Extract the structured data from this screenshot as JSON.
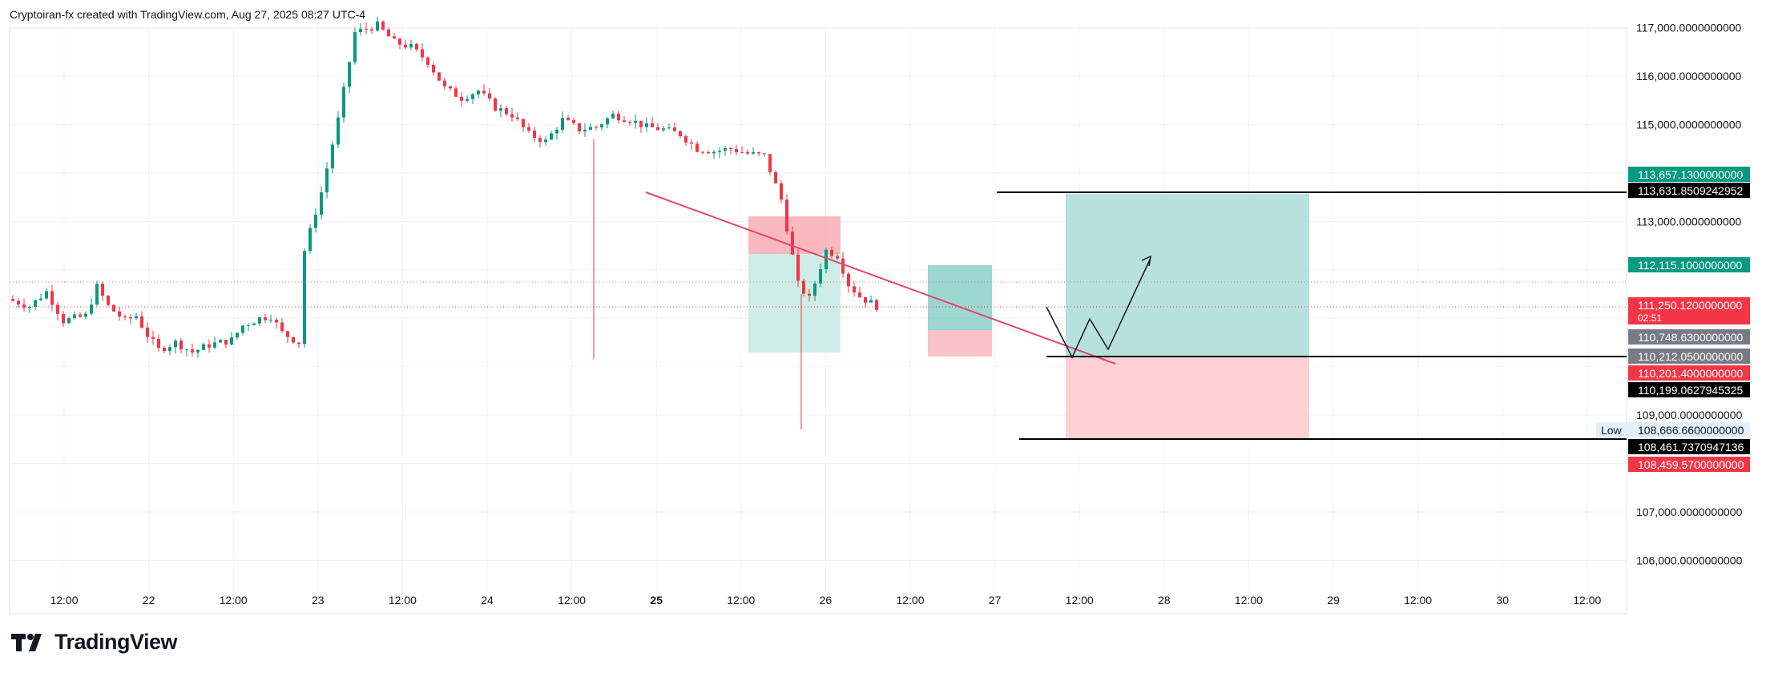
{
  "header": {
    "attribution": "Cryptoiran-fx created with TradingView.com, Aug 27, 2025 08:27 UTC-4"
  },
  "brand": {
    "name": "TradingView",
    "logo_icon": "tradingview-logo-icon"
  },
  "chart_data": {
    "type": "candlestick",
    "ylim": [
      105500,
      117200
    ],
    "y_ticks": [
      {
        "value": 117000,
        "label": "117,000.0000000000"
      },
      {
        "value": 116000,
        "label": "116,000.0000000000"
      },
      {
        "value": 115000,
        "label": "115,000.0000000000"
      },
      {
        "value": 113000,
        "label": "113,000.0000000000"
      },
      {
        "value": 109000,
        "label": "109,000.0000000000"
      },
      {
        "value": 107000,
        "label": "107,000.0000000000"
      },
      {
        "value": 106000,
        "label": "106,000.0000000000"
      }
    ],
    "x_ticks": [
      {
        "label": "12:00",
        "bold": false
      },
      {
        "label": "22",
        "bold": false
      },
      {
        "label": "12:00",
        "bold": false
      },
      {
        "label": "23",
        "bold": false
      },
      {
        "label": "12:00",
        "bold": false
      },
      {
        "label": "24",
        "bold": false
      },
      {
        "label": "12:00",
        "bold": false
      },
      {
        "label": "25",
        "bold": true
      },
      {
        "label": "12:00",
        "bold": false
      },
      {
        "label": "26",
        "bold": false
      },
      {
        "label": "12:00",
        "bold": false
      },
      {
        "label": "27",
        "bold": false
      },
      {
        "label": "12:00",
        "bold": false
      },
      {
        "label": "28",
        "bold": false
      },
      {
        "label": "12:00",
        "bold": false
      },
      {
        "label": "29",
        "bold": false
      },
      {
        "label": "12:00",
        "bold": false
      },
      {
        "label": "30",
        "bold": false
      },
      {
        "label": "12:00",
        "bold": false
      }
    ],
    "price_labels": [
      {
        "value": 113657.13,
        "label": "113,657.1300000000",
        "bg": "#089981",
        "fg": "#ffffff"
      },
      {
        "value": 113631.8509242952,
        "label": "113,631.8509242952",
        "bg": "#000000",
        "fg": "#ffffff"
      },
      {
        "value": 112115.1,
        "label": "112,115.1000000000",
        "bg": "#089981",
        "fg": "#ffffff"
      },
      {
        "value": 111250.12,
        "label": "111,250.1200000000",
        "sub": "02:51",
        "bg": "#f23645",
        "fg": "#ffffff"
      },
      {
        "value": 110748.63,
        "label": "110,748.6300000000",
        "bg": "#787b86",
        "fg": "#ffffff"
      },
      {
        "value": 110212.05,
        "label": "110,212.0500000000",
        "bg": "#787b86",
        "fg": "#ffffff"
      },
      {
        "value": 110201.4,
        "label": "110,201.4000000000",
        "bg": "#f23645",
        "fg": "#ffffff"
      },
      {
        "value": 110199.0627945325,
        "label": "110,199.0627945325",
        "bg": "#000000",
        "fg": "#ffffff"
      },
      {
        "value": 108666.66,
        "label": "108,666.6600000000",
        "prefix": "Low",
        "bg": "#e3effd",
        "fg": "#131722"
      },
      {
        "value": 108461.7370947136,
        "label": "108,461.7370947136",
        "bg": "#000000",
        "fg": "#ffffff"
      },
      {
        "value": 108459.57,
        "label": "108,459.5700000000",
        "bg": "#f23645",
        "fg": "#ffffff"
      }
    ],
    "colors": {
      "up": "#089981",
      "down": "#f23645",
      "grid": "#f0f3fa",
      "trendline": "#e5476a",
      "profit_zone": "#b2dfdb",
      "loss_zone": "#ffcdd2",
      "text": "#131722"
    },
    "candles": {
      "time_unit": "bar (1h)",
      "bar_count": 155,
      "anchors": [
        [
          0,
          111400
        ],
        [
          4,
          111250
        ],
        [
          7,
          111550
        ],
        [
          10,
          110950
        ],
        [
          14,
          111050
        ],
        [
          16,
          111650
        ],
        [
          18,
          111250
        ],
        [
          21,
          110950
        ],
        [
          23,
          111050
        ],
        [
          25,
          110650
        ],
        [
          27,
          110350
        ],
        [
          30,
          110500
        ],
        [
          33,
          110300
        ],
        [
          36,
          110450
        ],
        [
          40,
          110550
        ],
        [
          42,
          110850
        ],
        [
          45,
          111000
        ],
        [
          47,
          111050
        ],
        [
          49,
          110700
        ],
        [
          52,
          110500
        ],
        [
          53,
          112400
        ],
        [
          56,
          113600
        ],
        [
          59,
          115100
        ],
        [
          62,
          116900
        ],
        [
          66,
          117050
        ],
        [
          69,
          116700
        ],
        [
          72,
          116600
        ],
        [
          75,
          116300
        ],
        [
          78,
          115750
        ],
        [
          81,
          115550
        ],
        [
          84,
          115700
        ],
        [
          87,
          115350
        ],
        [
          90,
          115200
        ],
        [
          93,
          114800
        ],
        [
          96,
          114650
        ],
        [
          99,
          115100
        ],
        [
          102,
          114900
        ],
        [
          105,
          114950
        ],
        [
          108,
          115200
        ],
        [
          111,
          115100
        ],
        [
          114,
          114950
        ],
        [
          117,
          114900
        ],
        [
          120,
          114800
        ],
        [
          123,
          114500
        ],
        [
          126,
          114450
        ],
        [
          129,
          114500
        ],
        [
          132,
          114400
        ],
        [
          135,
          114350
        ],
        [
          138,
          113450
        ],
        [
          141,
          111700
        ],
        [
          143,
          111400
        ],
        [
          146,
          112400
        ],
        [
          148,
          112300
        ],
        [
          150,
          111700
        ],
        [
          152,
          111450
        ],
        [
          155,
          111250
        ]
      ]
    }
  }
}
